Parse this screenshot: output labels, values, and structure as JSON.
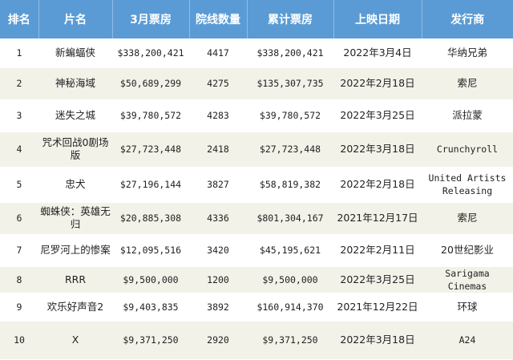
{
  "headers": [
    "排名",
    "片名",
    "3月票房",
    "院线数量",
    "累计票房",
    "上映日期",
    "发行商"
  ],
  "rows": [
    {
      "rank": "1",
      "title": "新蝙蝠侠",
      "march": "$338,200,421",
      "theaters": "4417",
      "total": "$338,200,421",
      "date": "2022年3月4日",
      "distributor": "华纳兄弟"
    },
    {
      "rank": "2",
      "title": "神秘海域",
      "march": "$50,689,299",
      "theaters": "4275",
      "total": "$135,307,735",
      "date": "2022年2月18日",
      "distributor": "索尼"
    },
    {
      "rank": "3",
      "title": "迷失之城",
      "march": "$39,780,572",
      "theaters": "4283",
      "total": "$39,780,572",
      "date": "2022年3月25日",
      "distributor": "派拉蒙"
    },
    {
      "rank": "4",
      "title": "咒术回战0剧场版",
      "march": "$27,723,448",
      "theaters": "2418",
      "total": "$27,723,448",
      "date": "2022年3月18日",
      "distributor": "Crunchyroll"
    },
    {
      "rank": "5",
      "title": "忠犬",
      "march": "$27,196,144",
      "theaters": "3827",
      "total": "$58,819,382",
      "date": "2022年2月18日",
      "distributor": "United Artists Releasing"
    },
    {
      "rank": "6",
      "title": "蜘蛛侠：英雄无归",
      "march": "$20,885,308",
      "theaters": "4336",
      "total": "$801,304,167",
      "date": "2021年12月17日",
      "distributor": "索尼"
    },
    {
      "rank": "7",
      "title": "尼罗河上的惨案",
      "march": "$12,095,516",
      "theaters": "3420",
      "total": "$45,195,621",
      "date": "2022年2月11日",
      "distributor": "20世纪影业"
    },
    {
      "rank": "8",
      "title": "RRR",
      "march": "$9,500,000",
      "theaters": "1200",
      "total": "$9,500,000",
      "date": "2022年3月25日",
      "distributor": "Sarigama Cinemas"
    },
    {
      "rank": "9",
      "title": "欢乐好声音2",
      "march": "$9,403,835",
      "theaters": "3892",
      "total": "$160,914,370",
      "date": "2021年12月22日",
      "distributor": "环球"
    },
    {
      "rank": "10",
      "title": "X",
      "march": "$9,371,250",
      "theaters": "2920",
      "total": "$9,371,250",
      "date": "2022年3月18日",
      "distributor": "A24"
    }
  ]
}
